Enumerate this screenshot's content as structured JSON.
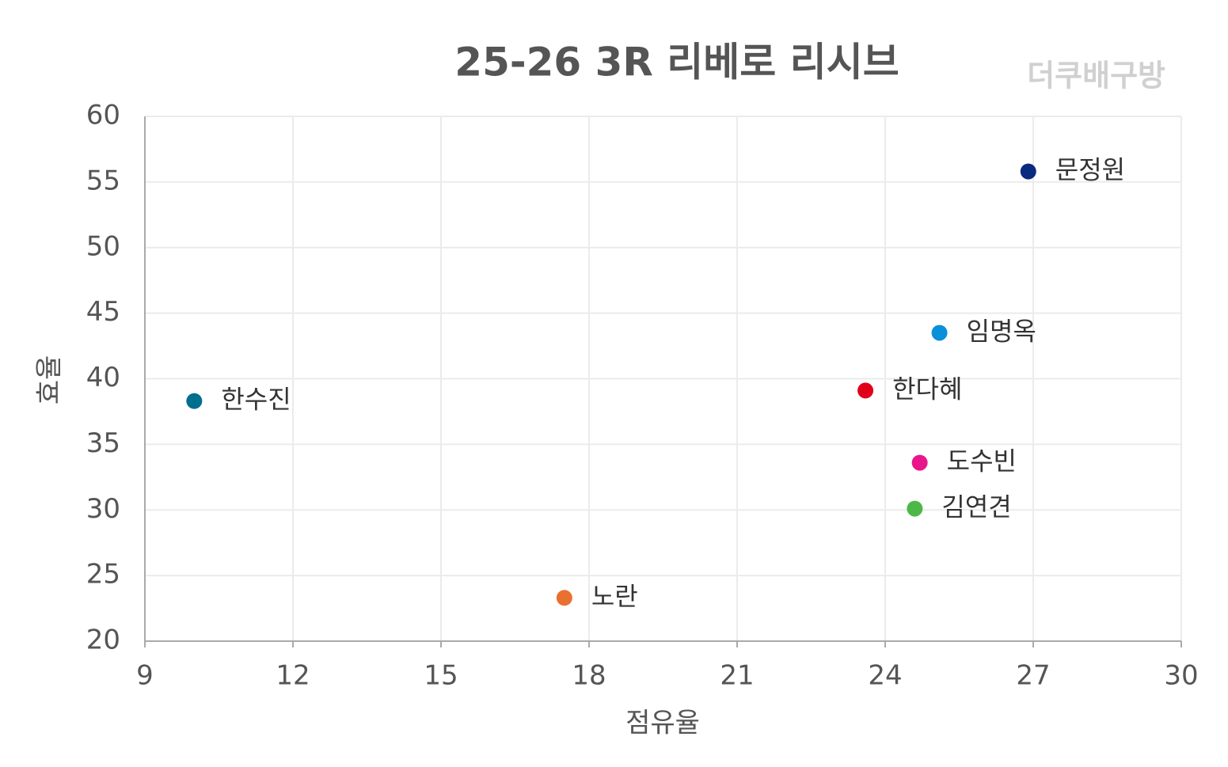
{
  "chart_data": {
    "type": "scatter",
    "title": "25-26 3R 리베로 리시브",
    "watermark": "더쿠배구방",
    "x_label": "점유율",
    "y_label": "효율",
    "labels": [
      "문정원",
      "임명옥",
      "한다혜",
      "한수진",
      "도수빈",
      "김연견",
      "노란"
    ],
    "x": [
      26.9,
      25.1,
      23.6,
      10.0,
      24.7,
      24.6,
      17.5
    ],
    "y": [
      55.8,
      43.5,
      39.1,
      38.3,
      33.6,
      30.1,
      23.3
    ],
    "colors": [
      "#0a2a80",
      "#0a90d8",
      "#e0001a",
      "#006e8f",
      "#e8168a",
      "#4db848",
      "#e87030"
    ],
    "xlim": [
      9,
      30
    ],
    "xticks": [
      9,
      12,
      15,
      18,
      21,
      24,
      27,
      30
    ],
    "ylim": [
      20,
      60
    ],
    "yticks": [
      20,
      25,
      30,
      35,
      40,
      45,
      50,
      55,
      60
    ],
    "grid": true
  }
}
